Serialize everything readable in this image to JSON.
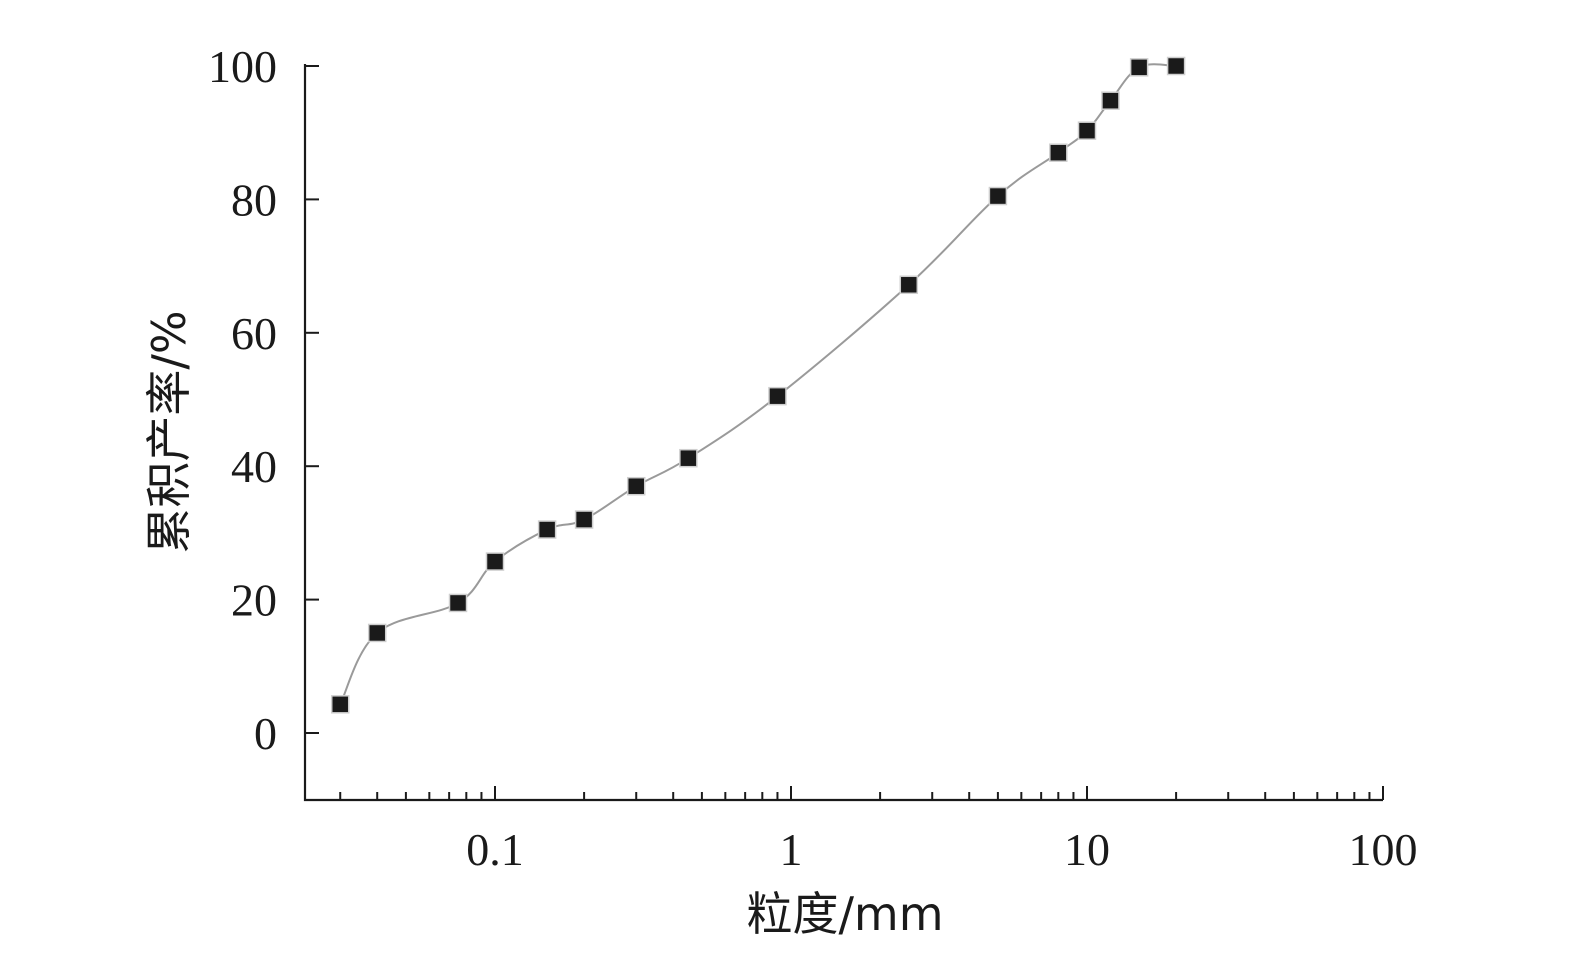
{
  "chart_data": {
    "type": "scatter",
    "xlabel": "粒度/mm",
    "ylabel": "累积产率/%",
    "xscale": "log",
    "xlim": [
      0.025,
      100
    ],
    "ylim": [
      -10,
      100
    ],
    "x_ticks": [
      0.1,
      1,
      10,
      100
    ],
    "x_tick_labels": [
      "0.1",
      "1",
      "10",
      "100"
    ],
    "y_ticks": [
      0,
      20,
      40,
      60,
      80,
      100
    ],
    "y_tick_labels": [
      "0",
      "20",
      "40",
      "60",
      "80",
      "100"
    ],
    "grid": false,
    "marker_color": "#1a1a1a",
    "curve_color": "#9a9a9a",
    "series": [
      {
        "x": [
          0.03,
          0.04,
          0.075,
          0.1,
          0.15,
          0.2,
          0.3,
          0.45,
          0.9,
          2.5,
          5,
          8,
          10,
          12,
          15,
          20
        ],
        "y": [
          4.3,
          15,
          19.5,
          25.7,
          30.5,
          32,
          37,
          41.2,
          50.5,
          67.2,
          80.5,
          87,
          90.3,
          94.8,
          99.8,
          100
        ]
      }
    ]
  }
}
